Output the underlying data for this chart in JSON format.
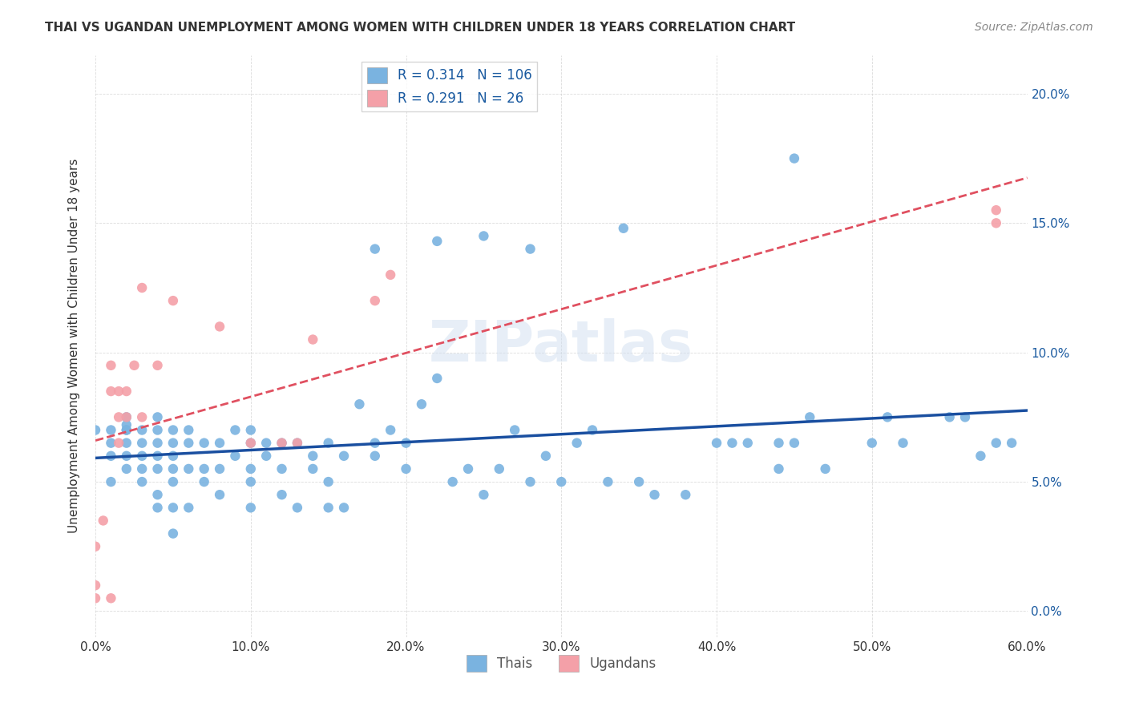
{
  "title": "THAI VS UGANDAN UNEMPLOYMENT AMONG WOMEN WITH CHILDREN UNDER 18 YEARS CORRELATION CHART",
  "source": "Source: ZipAtlas.com",
  "ylabel": "Unemployment Among Women with Children Under 18 years",
  "xlabel_ticks": [
    "0.0%",
    "10.0%",
    "20.0%",
    "30.0%",
    "40.0%",
    "50.0%",
    "60.0%"
  ],
  "ylabel_ticks": [
    "0.0%",
    "5.0%",
    "10.0%",
    "15.0%",
    "20.0%"
  ],
  "xlim": [
    0.0,
    0.6
  ],
  "ylim": [
    -0.01,
    0.215
  ],
  "legend_labels": [
    "Thais",
    "Ugandans"
  ],
  "thai_color": "#7ab3e0",
  "ugandan_color": "#f4a0a8",
  "thai_line_color": "#1a4fa0",
  "ugandan_line_color": "#e05060",
  "watermark": "ZIPatlas",
  "thai_R": 0.314,
  "thai_N": 106,
  "ugandan_R": 0.291,
  "ugandan_N": 26,
  "thai_scatter_x": [
    0.0,
    0.01,
    0.01,
    0.01,
    0.01,
    0.02,
    0.02,
    0.02,
    0.02,
    0.02,
    0.02,
    0.02,
    0.03,
    0.03,
    0.03,
    0.03,
    0.03,
    0.04,
    0.04,
    0.04,
    0.04,
    0.04,
    0.04,
    0.04,
    0.05,
    0.05,
    0.05,
    0.05,
    0.05,
    0.05,
    0.05,
    0.06,
    0.06,
    0.06,
    0.06,
    0.07,
    0.07,
    0.07,
    0.08,
    0.08,
    0.08,
    0.09,
    0.09,
    0.1,
    0.1,
    0.1,
    0.1,
    0.1,
    0.11,
    0.11,
    0.12,
    0.12,
    0.12,
    0.13,
    0.13,
    0.14,
    0.14,
    0.15,
    0.15,
    0.15,
    0.16,
    0.16,
    0.17,
    0.18,
    0.18,
    0.19,
    0.2,
    0.2,
    0.21,
    0.22,
    0.23,
    0.24,
    0.25,
    0.26,
    0.27,
    0.28,
    0.29,
    0.3,
    0.31,
    0.32,
    0.33,
    0.35,
    0.36,
    0.38,
    0.4,
    0.41,
    0.42,
    0.44,
    0.44,
    0.45,
    0.46,
    0.47,
    0.5,
    0.51,
    0.52,
    0.55,
    0.56,
    0.57,
    0.58,
    0.59,
    0.18,
    0.25,
    0.34,
    0.45,
    0.22,
    0.28
  ],
  "thai_scatter_y": [
    0.07,
    0.05,
    0.06,
    0.065,
    0.07,
    0.055,
    0.06,
    0.065,
    0.07,
    0.075,
    0.07,
    0.072,
    0.05,
    0.055,
    0.06,
    0.065,
    0.07,
    0.04,
    0.045,
    0.055,
    0.06,
    0.065,
    0.07,
    0.075,
    0.03,
    0.04,
    0.05,
    0.055,
    0.06,
    0.065,
    0.07,
    0.04,
    0.055,
    0.065,
    0.07,
    0.05,
    0.055,
    0.065,
    0.045,
    0.055,
    0.065,
    0.06,
    0.07,
    0.04,
    0.05,
    0.055,
    0.065,
    0.07,
    0.06,
    0.065,
    0.045,
    0.055,
    0.065,
    0.04,
    0.065,
    0.055,
    0.06,
    0.04,
    0.05,
    0.065,
    0.04,
    0.06,
    0.08,
    0.06,
    0.065,
    0.07,
    0.055,
    0.065,
    0.08,
    0.09,
    0.05,
    0.055,
    0.045,
    0.055,
    0.07,
    0.05,
    0.06,
    0.05,
    0.065,
    0.07,
    0.05,
    0.05,
    0.045,
    0.045,
    0.065,
    0.065,
    0.065,
    0.055,
    0.065,
    0.065,
    0.075,
    0.055,
    0.065,
    0.075,
    0.065,
    0.075,
    0.075,
    0.06,
    0.065,
    0.065,
    0.14,
    0.145,
    0.148,
    0.175,
    0.143,
    0.14
  ],
  "ugandan_scatter_x": [
    0.0,
    0.0,
    0.0,
    0.005,
    0.01,
    0.01,
    0.01,
    0.015,
    0.015,
    0.015,
    0.02,
    0.02,
    0.025,
    0.03,
    0.03,
    0.04,
    0.05,
    0.08,
    0.1,
    0.12,
    0.13,
    0.14,
    0.18,
    0.19,
    0.58,
    0.58
  ],
  "ugandan_scatter_y": [
    0.005,
    0.01,
    0.025,
    0.035,
    0.005,
    0.085,
    0.095,
    0.065,
    0.075,
    0.085,
    0.075,
    0.085,
    0.095,
    0.075,
    0.125,
    0.095,
    0.12,
    0.11,
    0.065,
    0.065,
    0.065,
    0.105,
    0.12,
    0.13,
    0.15,
    0.155
  ]
}
